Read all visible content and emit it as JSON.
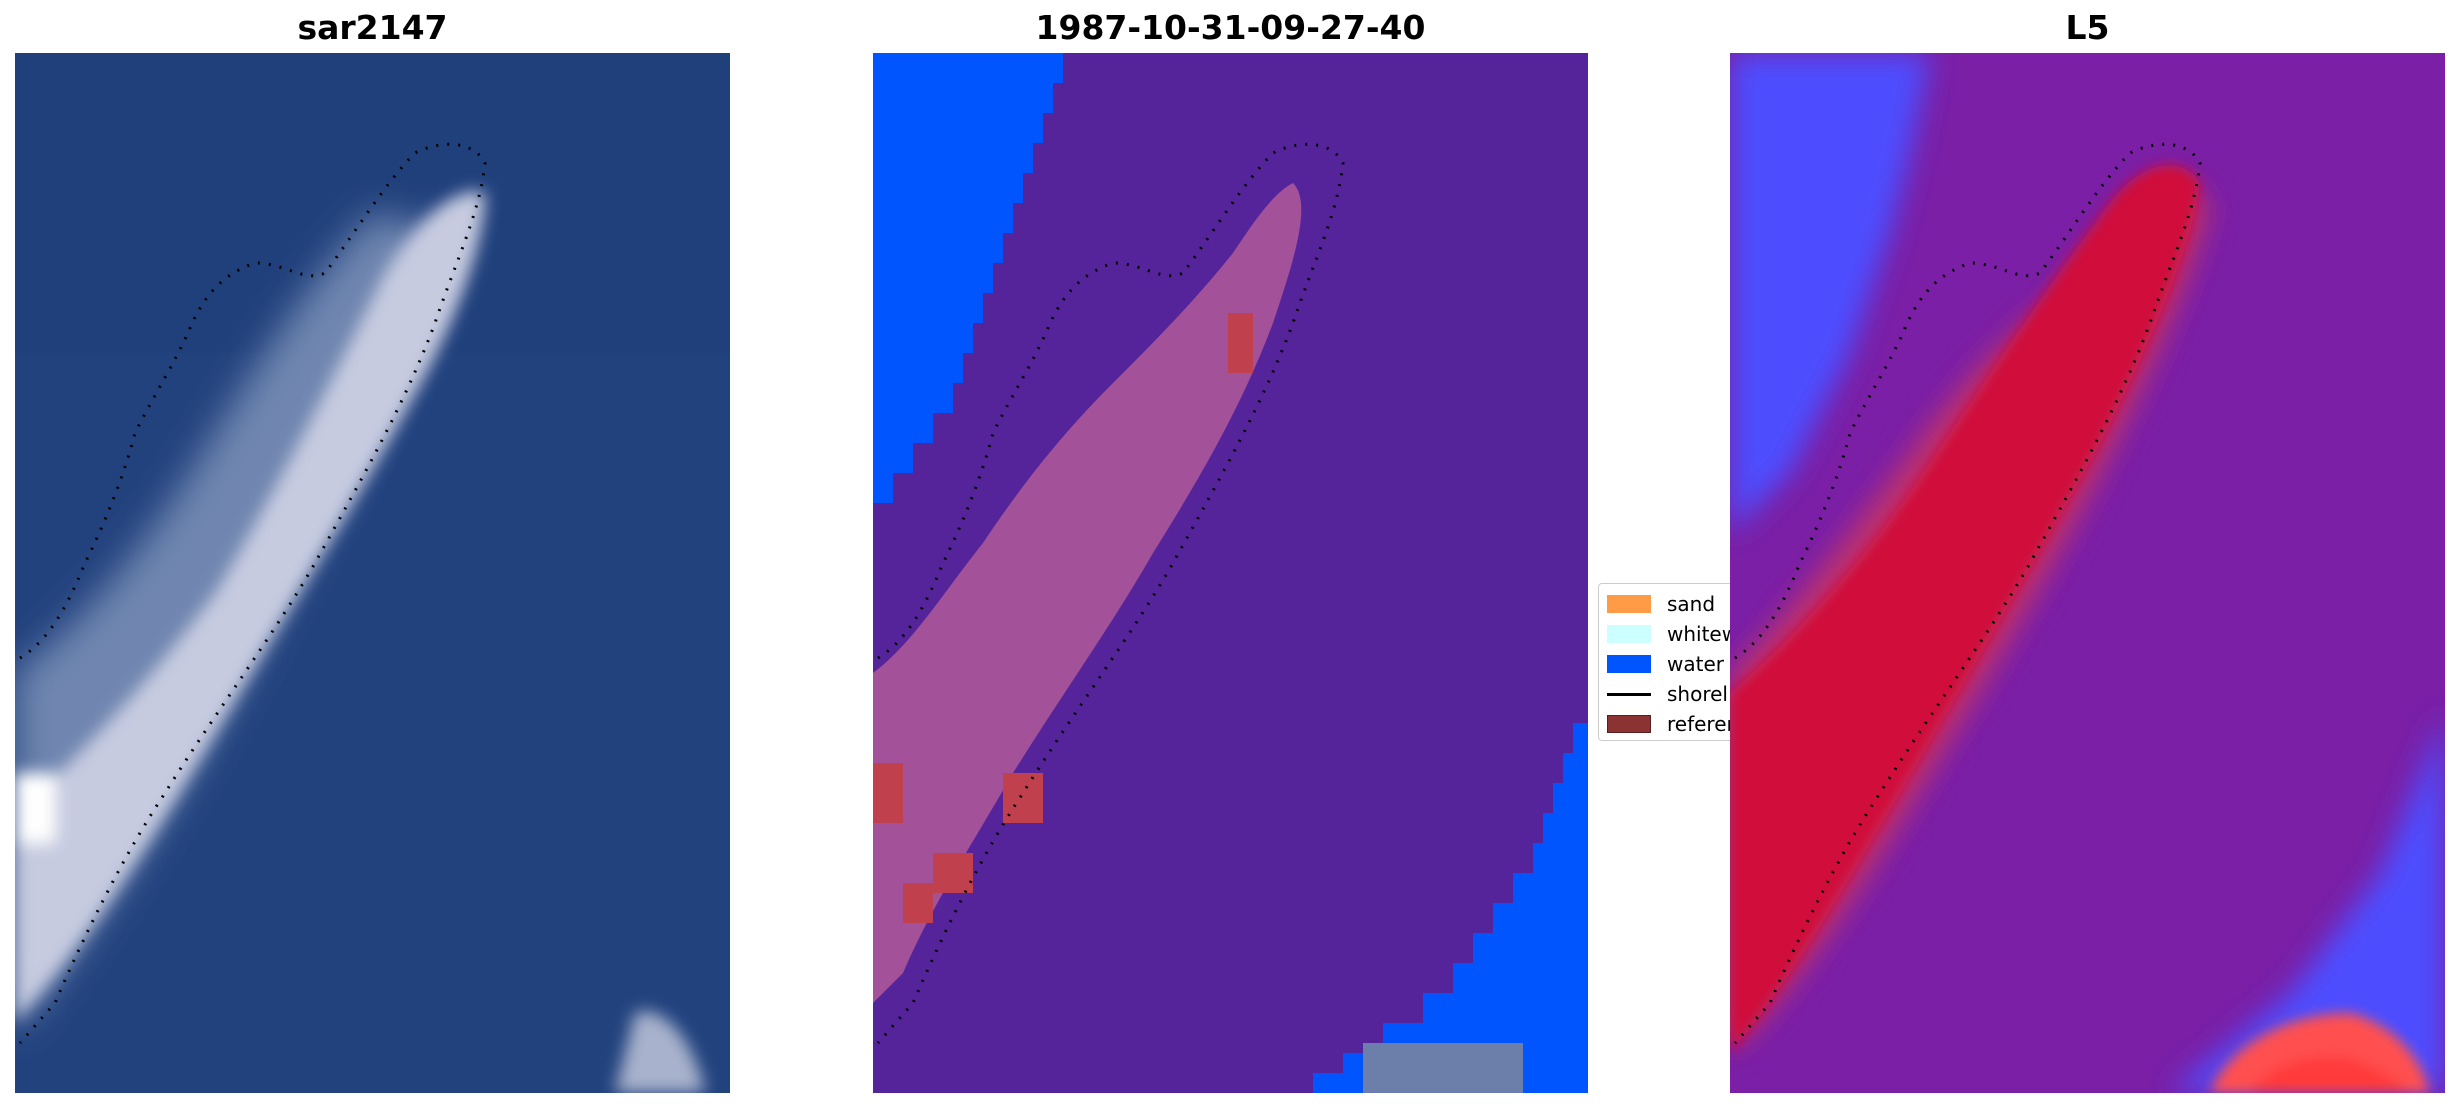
{
  "panels": [
    {
      "title": "sar2147"
    },
    {
      "title": "1987-10-31-09-27-40"
    },
    {
      "title": "L5"
    }
  ],
  "legend": [
    {
      "label": "sand",
      "color": "#ff9a47"
    },
    {
      "label": "whitew",
      "color": "#ccffff"
    },
    {
      "label": "water",
      "color": "#0055ff"
    },
    {
      "label": "shorel",
      "color": "#000000"
    },
    {
      "label": "referer",
      "color": "#8b3333"
    }
  ]
}
